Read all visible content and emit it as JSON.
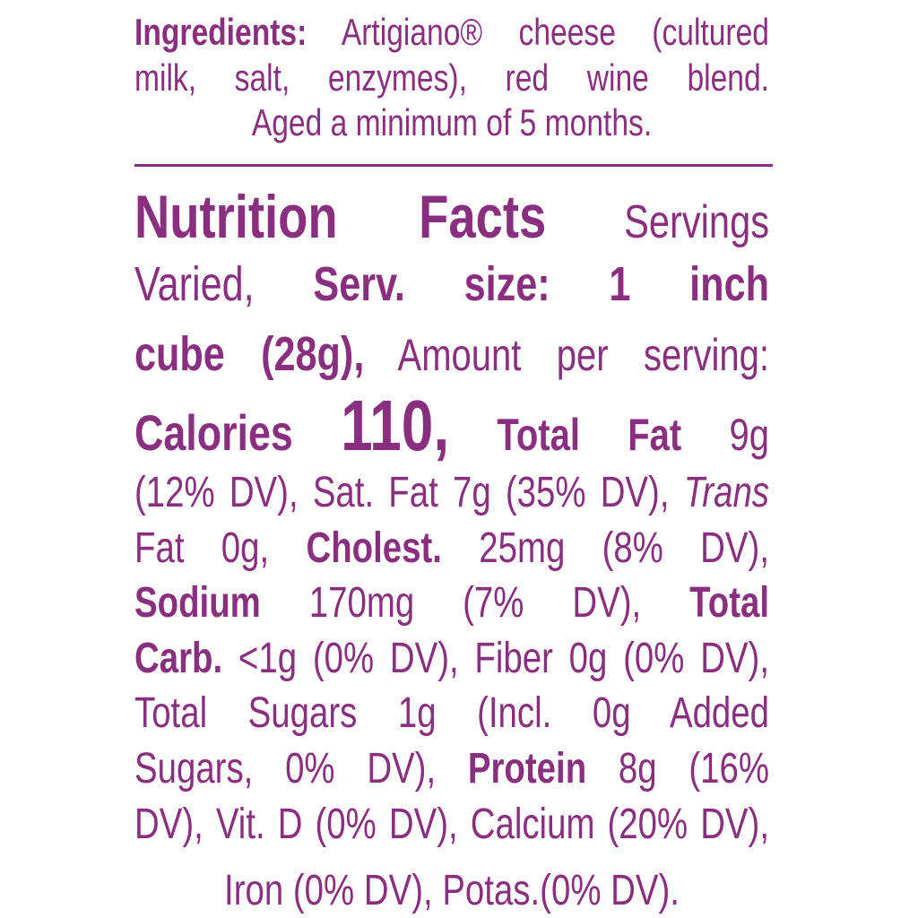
{
  "ingredients": {
    "label": "Ingredients:",
    "line1": "Artigiano® cheese (cultured",
    "line2": "milk, salt, enzymes), red wine blend.",
    "line3": "Aged a minimum of 5 months."
  },
  "nutrition": {
    "title": "Nutrition Facts",
    "servings": "Servings",
    "varied": "Varied,",
    "serv_size_label": "Serv. size: 1 inch",
    "serv_size_value": "cube (28g),",
    "amount_per": "Amount per serving:",
    "calories_label": "Calories",
    "calories_value": "110,",
    "total_fat_label": "Total Fat",
    "total_fat_value": "9g",
    "l8": "(12% DV), Sat. Fat 7g (35% DV),",
    "trans": "Trans",
    "fat0": "Fat 0g,",
    "cholest_label": "Cholest.",
    "cholest_value": "25mg (8% DV),",
    "sodium_label": "Sodium",
    "sodium_value": "170mg (7% DV),",
    "total_label": "Total",
    "carb_label": "Carb.",
    "carb_value": "<1g (0% DV), Fiber 0g (0% DV),",
    "sugars_line": "Total Sugars 1g (Incl. 0g Added",
    "added_sugars": "Sugars, 0% DV),",
    "protein_label": "Protein",
    "protein_value": "8g (16%",
    "l14": "DV), Vit. D (0% DV), Calcium (20% DV),",
    "l15": "Iron (0% DV), Potas.(0% DV)."
  }
}
